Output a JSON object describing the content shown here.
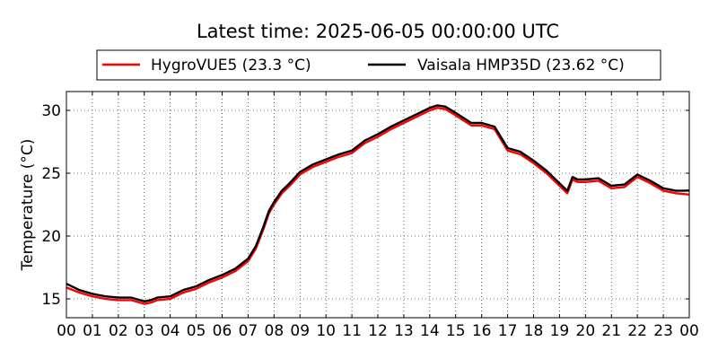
{
  "chart_data": {
    "type": "line",
    "title": "Latest time: 2025-06-05 00:00:00 UTC",
    "ylabel": "Temperature (°C)",
    "xlabel": "",
    "x_tick_labels": [
      "00",
      "01",
      "02",
      "03",
      "04",
      "05",
      "06",
      "07",
      "08",
      "09",
      "10",
      "11",
      "12",
      "13",
      "14",
      "15",
      "16",
      "17",
      "18",
      "19",
      "20",
      "21",
      "22",
      "23",
      "00"
    ],
    "y_ticks": [
      15,
      20,
      25,
      30
    ],
    "xlim": [
      0,
      24
    ],
    "ylim": [
      13.5,
      31.5
    ],
    "grid": true,
    "legend_position": "top",
    "series": [
      {
        "name": "HygroVUE5 (23.3 °C)",
        "color": "#ff0000",
        "x": [
          0,
          0.5,
          1,
          1.5,
          2,
          2.5,
          3,
          3.25,
          3.5,
          4,
          4.5,
          5,
          5.5,
          6,
          6.5,
          7,
          7.3,
          7.6,
          7.8,
          8,
          8.3,
          8.6,
          9,
          9.5,
          10,
          10.5,
          11,
          11.5,
          12,
          12.5,
          13,
          13.5,
          14,
          14.3,
          14.6,
          15,
          15.3,
          15.6,
          16,
          16.5,
          17,
          17.5,
          18,
          18.5,
          19,
          19.3,
          19.5,
          19.7,
          20,
          20.5,
          21,
          21.5,
          22,
          22.5,
          23,
          23.5,
          24
        ],
        "y": [
          15.9,
          15.5,
          15.2,
          15.0,
          14.9,
          14.9,
          14.6,
          14.7,
          14.9,
          15.0,
          15.5,
          15.8,
          16.3,
          16.7,
          17.2,
          18.0,
          19.0,
          20.6,
          21.8,
          22.5,
          23.4,
          24.0,
          24.9,
          25.5,
          25.9,
          26.3,
          26.6,
          27.4,
          27.9,
          28.5,
          29.0,
          29.5,
          30.0,
          30.2,
          30.1,
          29.6,
          29.2,
          28.8,
          28.8,
          28.5,
          26.8,
          26.5,
          25.8,
          25.0,
          24.0,
          23.4,
          24.5,
          24.3,
          24.3,
          24.4,
          23.8,
          23.9,
          24.7,
          24.2,
          23.6,
          23.4,
          23.3
        ]
      },
      {
        "name": "Vaisala HMP35D (23.62 °C)",
        "color": "#000000",
        "x": [
          0,
          0.5,
          1,
          1.5,
          2,
          2.5,
          3,
          3.25,
          3.5,
          4,
          4.5,
          5,
          5.5,
          6,
          6.5,
          7,
          7.3,
          7.6,
          7.8,
          8,
          8.3,
          8.6,
          9,
          9.5,
          10,
          10.5,
          11,
          11.5,
          12,
          12.5,
          13,
          13.5,
          14,
          14.3,
          14.6,
          15,
          15.3,
          15.6,
          16,
          16.5,
          17,
          17.5,
          18,
          18.5,
          19,
          19.3,
          19.5,
          19.7,
          20,
          20.5,
          21,
          21.5,
          22,
          22.5,
          23,
          23.5,
          24
        ],
        "y": [
          16.2,
          15.7,
          15.4,
          15.2,
          15.1,
          15.1,
          14.8,
          14.9,
          15.1,
          15.2,
          15.7,
          16.0,
          16.5,
          16.9,
          17.4,
          18.2,
          19.2,
          20.8,
          22.0,
          22.7,
          23.6,
          24.2,
          25.1,
          25.7,
          26.1,
          26.5,
          26.8,
          27.6,
          28.1,
          28.7,
          29.2,
          29.7,
          30.2,
          30.4,
          30.3,
          29.8,
          29.4,
          29.0,
          29.0,
          28.7,
          27.0,
          26.7,
          26.0,
          25.2,
          24.2,
          23.6,
          24.7,
          24.5,
          24.5,
          24.6,
          24.0,
          24.1,
          24.9,
          24.4,
          23.8,
          23.6,
          23.62
        ]
      }
    ]
  }
}
